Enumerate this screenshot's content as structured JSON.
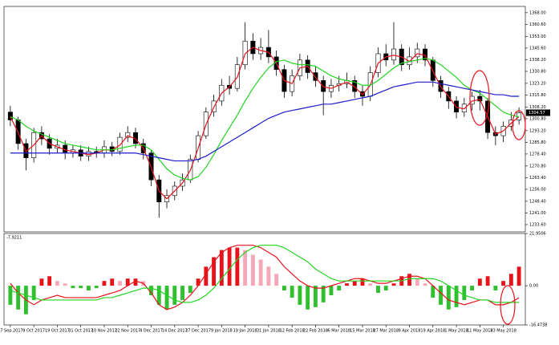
{
  "chart_data": {
    "type": "candlestick",
    "categories": [
      "27 Sep 2017",
      null,
      null,
      "9 Oct 2017",
      null,
      null,
      "19 Oct 2017",
      null,
      null,
      "31 Oct 2017",
      null,
      null,
      "10 Nov 2017",
      null,
      null,
      "22 Nov 2017",
      null,
      null,
      "4 Dec 2017",
      null,
      null,
      "14 Dec 2017",
      null,
      null,
      "27 Dec 2017",
      null,
      null,
      "9 Jan 2018",
      null,
      null,
      "19 Jan 2018",
      null,
      null,
      "31 Jan 2018",
      null,
      null,
      "12 Feb 2018",
      null,
      null,
      "22 Feb 2018",
      null,
      null,
      "6 Mar 2018",
      null,
      null,
      "15 Mar 2018",
      null,
      null,
      "27 Mar 2018",
      null,
      null,
      "9 Apr 2018",
      null,
      null,
      "19 Apr 2018",
      null,
      null,
      "1 May 2018",
      null,
      null,
      "11 May 2018",
      null,
      null,
      "23 May 2018",
      null,
      null
    ],
    "open": [
      1305,
      1300,
      1285,
      1276,
      1292,
      1288,
      1282,
      1284,
      1279,
      1281,
      1277,
      1280,
      1279,
      1283,
      1280,
      1289,
      1292,
      1285,
      1279,
      1262,
      1248,
      1252,
      1258,
      1262,
      1275,
      1290,
      1305,
      1312,
      1322,
      1320,
      1335,
      1350,
      1342,
      1346,
      1340,
      1332,
      1318,
      1328,
      1338,
      1330,
      1325,
      1318,
      1322,
      1323,
      1325,
      1318,
      1315,
      1330,
      1342,
      1338,
      1345,
      1335,
      1340,
      1345,
      1338,
      1325,
      1318,
      1312,
      1305,
      1310,
      1315,
      1312,
      1292,
      1290,
      1296,
      1300
    ],
    "high": [
      1309,
      1302,
      1288,
      1295,
      1296,
      1291,
      1288,
      1287,
      1284,
      1284,
      1283,
      1283,
      1287,
      1286,
      1292,
      1296,
      1295,
      1288,
      1281,
      1265,
      1256,
      1261,
      1266,
      1278,
      1293,
      1308,
      1316,
      1326,
      1328,
      1340,
      1362,
      1355,
      1352,
      1357,
      1344,
      1335,
      1332,
      1342,
      1341,
      1334,
      1328,
      1326,
      1328,
      1330,
      1328,
      1322,
      1334,
      1346,
      1348,
      1362,
      1348,
      1346,
      1349,
      1348,
      1340,
      1328,
      1321,
      1315,
      1314,
      1318,
      1319,
      1314,
      1296,
      1299,
      1305,
      1308
    ],
    "low": [
      1296,
      1281,
      1268,
      1273,
      1284,
      1278,
      1279,
      1275,
      1276,
      1274,
      1274,
      1276,
      1276,
      1277,
      1278,
      1286,
      1282,
      1275,
      1258,
      1238,
      1244,
      1249,
      1255,
      1260,
      1273,
      1288,
      1302,
      1309,
      1316,
      1318,
      1332,
      1338,
      1338,
      1336,
      1328,
      1314,
      1315,
      1325,
      1326,
      1321,
      1303,
      1314,
      1318,
      1320,
      1314,
      1309,
      1312,
      1327,
      1334,
      1335,
      1331,
      1332,
      1336,
      1334,
      1321,
      1314,
      1307,
      1301,
      1302,
      1306,
      1306,
      1288,
      1284,
      1286,
      1293,
      1297
    ],
    "close": [
      1300,
      1285,
      1276,
      1292,
      1288,
      1282,
      1284,
      1279,
      1281,
      1277,
      1280,
      1279,
      1283,
      1280,
      1289,
      1292,
      1285,
      1279,
      1262,
      1248,
      1252,
      1258,
      1262,
      1275,
      1290,
      1305,
      1312,
      1322,
      1320,
      1335,
      1350,
      1342,
      1346,
      1340,
      1332,
      1318,
      1328,
      1338,
      1330,
      1325,
      1318,
      1322,
      1323,
      1325,
      1318,
      1315,
      1330,
      1342,
      1338,
      1345,
      1335,
      1340,
      1345,
      1338,
      1325,
      1318,
      1312,
      1305,
      1310,
      1315,
      1312,
      1292,
      1290,
      1296,
      1300,
      1304.57
    ],
    "up_color": "#ffffff",
    "down_color": "#000000",
    "series": [
      {
        "color": "#e8121b",
        "values": [
          1302,
          1292,
          1280,
          1284,
          1290,
          1285,
          1283,
          1281,
          1280,
          1279,
          1278,
          1279,
          1281,
          1281,
          1284,
          1290,
          1288,
          1282,
          1270,
          1255,
          1250,
          1255,
          1260,
          1268,
          1282,
          1297,
          1308,
          1317,
          1321,
          1327,
          1342,
          1346,
          1344,
          1343,
          1336,
          1325,
          1323,
          1333,
          1334,
          1327,
          1321,
          1320,
          1322,
          1324,
          1321,
          1316,
          1322,
          1336,
          1340,
          1341,
          1340,
          1337,
          1342,
          1341,
          1331,
          1321,
          1315,
          1308,
          1307,
          1312,
          1313,
          1302,
          1291,
          1293,
          1298,
          1302
        ]
      },
      {
        "color": "#22d522",
        "values": [
          1302,
          1300,
          1296,
          1293,
          1291,
          1289,
          1287,
          1285,
          1284,
          1283,
          1282,
          1281,
          1281,
          1281,
          1282,
          1283,
          1284,
          1284,
          1281,
          1275,
          1269,
          1265,
          1263,
          1262,
          1264,
          1270,
          1278,
          1287,
          1295,
          1303,
          1312,
          1320,
          1327,
          1333,
          1337,
          1338,
          1336,
          1335,
          1335,
          1334,
          1331,
          1328,
          1326,
          1325,
          1324,
          1322,
          1322,
          1325,
          1329,
          1333,
          1336,
          1337,
          1338,
          1339,
          1338,
          1335,
          1331,
          1327,
          1322,
          1319,
          1317,
          1313,
          1309,
          1305,
          1303,
          1302
        ]
      },
      {
        "color": "#1c1ccc",
        "values": [
          1279,
          1279,
          1279,
          1279,
          1279,
          1279,
          1279,
          1279,
          1279,
          1279,
          1279,
          1279,
          1279,
          1279,
          1279,
          1279,
          1279,
          1278,
          1277,
          1276,
          1275,
          1274,
          1274,
          1274,
          1275,
          1277,
          1280,
          1283,
          1286,
          1289,
          1292,
          1295,
          1298,
          1301,
          1303,
          1305,
          1306,
          1307,
          1308,
          1309,
          1310,
          1310,
          1311,
          1312,
          1313,
          1314,
          1315,
          1317,
          1319,
          1321,
          1322,
          1323,
          1324,
          1324,
          1324,
          1323,
          1322,
          1321,
          1320,
          1319,
          1318,
          1317,
          1316,
          1316,
          1315,
          1315
        ]
      }
    ],
    "ylim": [
      1229,
      1372
    ],
    "yticks": [
      {
        "value": 1368,
        "label": "1368.00"
      },
      {
        "value": 1360.6,
        "label": "1360.60"
      },
      {
        "value": 1353,
        "label": "1353.00"
      },
      {
        "value": 1345.6,
        "label": "1345.60"
      },
      {
        "value": 1338.2,
        "label": "1338.20"
      },
      {
        "value": 1330.8,
        "label": "1330.80"
      },
      {
        "value": 1323.2,
        "label": "1323.20"
      },
      {
        "value": 1315.8,
        "label": "1315.80"
      },
      {
        "value": 1308.2,
        "label": "1308.20"
      },
      {
        "value": 1300.8,
        "label": "1300.80"
      },
      {
        "value": 1293.2,
        "label": "1293.20"
      },
      {
        "value": 1285.8,
        "label": "1285.80"
      },
      {
        "value": 1278.4,
        "label": "1278.40"
      },
      {
        "value": 1270.8,
        "label": "1270.80"
      },
      {
        "value": 1263.4,
        "label": "1263.40"
      },
      {
        "value": 1256,
        "label": "1256.00"
      },
      {
        "value": 1248.4,
        "label": "1248.40"
      },
      {
        "value": 1241,
        "label": "1241.00"
      },
      {
        "value": 1233.6,
        "label": "1233.60"
      }
    ],
    "last_price": 1304.57,
    "indicator": {
      "value": -7.9211,
      "histogram": [
        -8,
        -10,
        -12,
        -6,
        3,
        4,
        2,
        1,
        -1,
        -1,
        -2,
        -1,
        2,
        3,
        2,
        3,
        3,
        2,
        -4,
        -8,
        -10,
        -8,
        -6,
        -3,
        3,
        8,
        12,
        15,
        16,
        16,
        15,
        13,
        11,
        8,
        5,
        -2,
        -5,
        -8,
        -10,
        -9,
        -7,
        -4,
        -2,
        1,
        2,
        3,
        1,
        -3,
        -2,
        1,
        4,
        5,
        3,
        1,
        -5,
        -8,
        -10,
        -9,
        -6,
        -2,
        3,
        4,
        -2,
        2,
        5,
        8
      ],
      "rising_color": "#e8121b",
      "falling_color": "#f7a8b8",
      "negative_color": "#2fbf2f",
      "series": [
        {
          "color": "#e8121b",
          "values": [
            1,
            -3,
            -6,
            -8,
            -6,
            -5,
            -4,
            -5,
            -5,
            -5,
            -5,
            -5,
            -4,
            -3,
            -2,
            0,
            2,
            1,
            -3,
            -8,
            -10,
            -9,
            -7,
            -4,
            0,
            5,
            10,
            14,
            16,
            17,
            17,
            17,
            16,
            14,
            12,
            8,
            5,
            2,
            0,
            -1,
            -1,
            0,
            1,
            2,
            3,
            3,
            2,
            1,
            1,
            2,
            3,
            4,
            4,
            3,
            0,
            -3,
            -6,
            -7,
            -8,
            -7,
            -6,
            -6,
            -8,
            -8,
            -7,
            -5
          ]
        },
        {
          "color": "#22d522",
          "values": [
            -2,
            -3,
            -4,
            -5,
            -6,
            -6,
            -6,
            -6,
            -6,
            -6,
            -6,
            -6,
            -5,
            -5,
            -4,
            -3,
            -2,
            -1,
            -1,
            -2,
            -4,
            -6,
            -7,
            -7,
            -6,
            -4,
            -1,
            3,
            7,
            11,
            14,
            16,
            17,
            17,
            17,
            16,
            14,
            12,
            10,
            7,
            5,
            3,
            2,
            2,
            2,
            2,
            2,
            2,
            2,
            2,
            2,
            3,
            3,
            3,
            3,
            2,
            0,
            -2,
            -4,
            -5,
            -6,
            -6,
            -7,
            -7,
            -7,
            -7
          ]
        }
      ],
      "ylim": [
        -16.4738,
        21.9506
      ],
      "yticks": [
        21.9506,
        {
          "value": 0,
          "label": "0.00"
        },
        -16.4738
      ]
    }
  }
}
